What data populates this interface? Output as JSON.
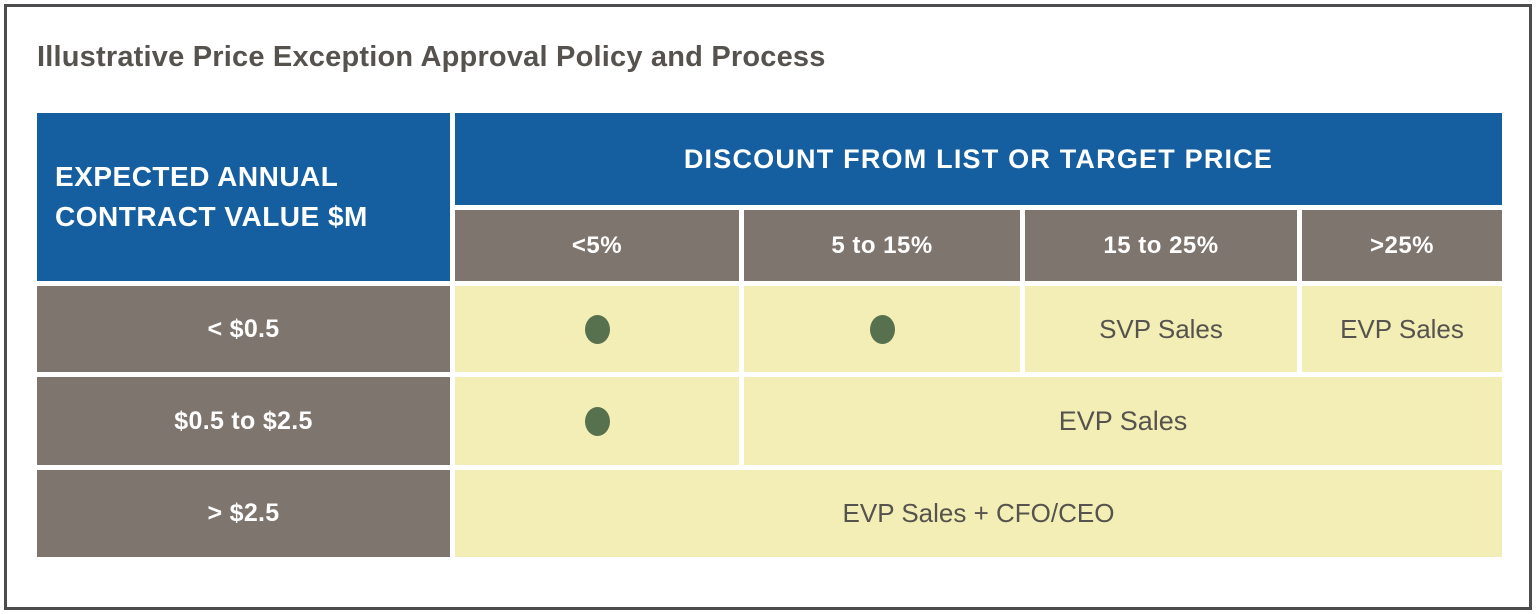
{
  "title": "Illustrative Price Exception Approval Policy and Process",
  "table": {
    "row_header_lines": [
      "EXPECTED ANNUAL",
      "CONTRACT VALUE $M"
    ],
    "column_group_header": "DISCOUNT FROM LIST OR TARGET PRICE",
    "discount_columns": [
      "<5%",
      "5 to 15%",
      "15 to 25%",
      ">25%"
    ],
    "rows": [
      {
        "label": "< $0.5",
        "cells": [
          {
            "type": "dot"
          },
          {
            "type": "dot"
          },
          {
            "type": "text",
            "value": "SVP Sales"
          },
          {
            "type": "text",
            "value": "EVP Sales"
          }
        ]
      },
      {
        "label": "$0.5 to $2.5",
        "cells": [
          {
            "type": "dot"
          },
          {
            "type": "text",
            "value": "EVP Sales",
            "colspan": 3
          }
        ]
      },
      {
        "label": "> $2.5",
        "cells": [
          {
            "type": "text",
            "value": "EVP Sales + CFO/CEO",
            "colspan": 4
          }
        ]
      }
    ]
  },
  "colors": {
    "blue": "#155fa0",
    "taupe": "#7e756f",
    "cream": "#f2eeb5",
    "green": "#57704e",
    "dark_text": "#56524e",
    "frame": "#4c4c4e"
  }
}
